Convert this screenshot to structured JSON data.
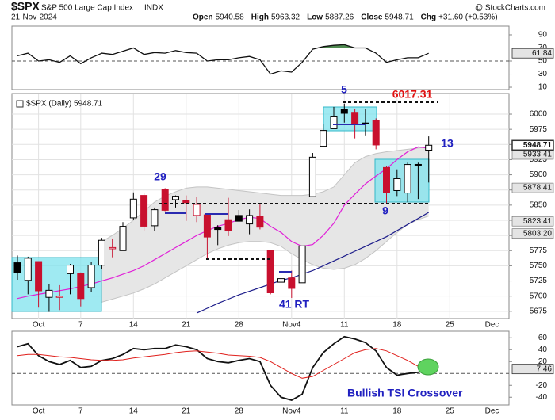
{
  "header": {
    "symbol": "$SPX",
    "name": "S&P 500 Large Cap Index",
    "exchange": "INDX",
    "credit": "@ StockCharts.com",
    "date": "21-Nov-2024",
    "quote": [
      {
        "label": "Open",
        "value": "5940.58"
      },
      {
        "label": "High",
        "value": "5963.32"
      },
      {
        "label": "Low",
        "value": "5887.26"
      },
      {
        "label": "Close",
        "value": "5948.71"
      },
      {
        "label": "Chg",
        "value": "+31.60 (+0.53%)"
      }
    ]
  },
  "chart_data": [
    {
      "type": "line",
      "ylim": [
        6.4,
        103.3
      ],
      "yticks": [
        90,
        70,
        50,
        30,
        10
      ],
      "levels": [
        70,
        30
      ],
      "midline": 50,
      "color": "#111111",
      "over_color": "#4f8a50",
      "under_color": "#b02a40",
      "value_box": true,
      "values": [
        58,
        62,
        50,
        52,
        48,
        58,
        46,
        55,
        62,
        60,
        65,
        70,
        60,
        63,
        62,
        66,
        63,
        62,
        50,
        52,
        52,
        55,
        57,
        52,
        30,
        35,
        33,
        48,
        68,
        72,
        74,
        75,
        70,
        70,
        62,
        48,
        52,
        55,
        55,
        61.84,
        null,
        null,
        null,
        null,
        null,
        null
      ]
    },
    {
      "type": "candlestick",
      "label": "$SPX (Daily) 5948.71",
      "ylim": [
        5663,
        6034
      ],
      "yticks": [
        5675,
        5700,
        5725,
        5750,
        5775,
        5800,
        5825,
        5850,
        5875,
        5900,
        5925,
        5950,
        5975,
        6000
      ],
      "grid": true,
      "up_color": "#000000",
      "down_color": "#c8102e",
      "value_box": true,
      "categories": [
        null,
        null,
        "Oct",
        null,
        null,
        null,
        "7",
        null,
        null,
        null,
        null,
        "14",
        null,
        null,
        null,
        null,
        "21",
        null,
        null,
        null,
        null,
        "28",
        null,
        null,
        null,
        null,
        "Nov4",
        null,
        null,
        null,
        null,
        "11",
        null,
        null,
        null,
        null,
        "18",
        null,
        null,
        null,
        null,
        "25",
        null,
        null,
        null,
        "Dec"
      ],
      "open": [
        5755,
        5726,
        5757,
        5698,
        5698,
        5737,
        5737,
        5714,
        5751,
        5778,
        5775,
        5829,
        5866,
        5816,
        5876,
        5859,
        5857,
        5833,
        5834,
        5813,
        5826,
        5833,
        5819,
        5832,
        5775,
        5723,
        5730,
        5722,
        5864,
        5947,
        5976,
        6008,
        6003,
        5985,
        5989,
        5912,
        5874,
        5870,
        5917,
        5940.58,
        null,
        null,
        null,
        null,
        null,
        null
      ],
      "high": [
        5767,
        5765,
        5757,
        5720,
        5718,
        5753,
        5739,
        5757,
        5796,
        5795,
        5822,
        5871,
        5870,
        5846,
        5878,
        5866,
        5866,
        5863,
        5834,
        5817,
        5862,
        5842,
        5843,
        5851,
        5775,
        5772,
        5742,
        5783,
        5936,
        5983,
        6012,
        6017.31,
        6009,
        6008,
        5993,
        5915,
        5909,
        5920,
        5920,
        5963.32,
        null,
        null,
        null,
        null,
        null,
        null
      ],
      "low": [
        5727,
        5703,
        5681,
        5674,
        5677,
        5703,
        5683,
        5707,
        5745,
        5764,
        5775,
        5825,
        5807,
        5808,
        5840,
        5846,
        5824,
        5822,
        5762,
        5784,
        5799,
        5823,
        5802,
        5810,
        5703,
        5723,
        5697,
        5722,
        5864,
        5947,
        5976,
        5986,
        5960,
        5965,
        5942,
        5853,
        5865,
        5855,
        5860,
        5887.26,
        null,
        null,
        null,
        null,
        null,
        null
      ],
      "close": [
        5738.17,
        5762.48,
        5708.75,
        5709.54,
        5699.94,
        5751.07,
        5695.94,
        5751.13,
        5792.04,
        5780.05,
        5815.03,
        5859.85,
        5815.26,
        5842.47,
        5841.47,
        5864.67,
        5853.98,
        5851.2,
        5797.42,
        5809.86,
        5808.12,
        5823.52,
        5832.92,
        5813.67,
        5705.45,
        5728.8,
        5712.69,
        5782.76,
        5929.04,
        5973.1,
        5995.54,
        6001.35,
        5983.99,
        5985.38,
        5949.17,
        5870.62,
        5893.62,
        5916.98,
        5917.11,
        5948.71,
        null,
        null,
        null,
        null,
        null,
        null
      ],
      "band": {
        "color": "#e6e6e6",
        "edge_color": "#c4c4c4",
        "upper": [
          null,
          null,
          null,
          null,
          null,
          null,
          null,
          null,
          5790,
          5800,
          5812,
          5825,
          5840,
          5855,
          5865,
          5872,
          5878,
          5880,
          5880,
          5878,
          5876,
          5874,
          5872,
          5870,
          5868,
          5866,
          5866,
          5866,
          5868,
          5872,
          5880,
          5900,
          5920,
          5930,
          5935,
          5938,
          5940,
          5942,
          5944,
          5946,
          null,
          null,
          null,
          null,
          null,
          null
        ],
        "lower": [
          null,
          null,
          null,
          null,
          null,
          null,
          null,
          null,
          5690,
          5695,
          5700,
          5705,
          5712,
          5720,
          5730,
          5740,
          5750,
          5760,
          5770,
          5778,
          5784,
          5788,
          5790,
          5790,
          5788,
          5782,
          5770,
          5760,
          5752,
          5746,
          5744,
          5746,
          5752,
          5762,
          5775,
          5790,
          5805,
          5818,
          5826,
          5832,
          null,
          null,
          null,
          null,
          null,
          null
        ]
      },
      "series": [
        {
          "color": "#e020d8",
          "values": [
            5696,
            5700,
            5703,
            5706,
            5709,
            5712,
            5716,
            5720,
            5725,
            5730,
            5736,
            5742,
            5750,
            5760,
            5770,
            5780,
            5790,
            5800,
            5808,
            5815,
            5820,
            5826,
            5830,
            5828,
            5815,
            5805,
            5790,
            5782,
            5785,
            5800,
            5820,
            5850,
            5868,
            5885,
            5898,
            5910,
            5925,
            5938,
            5946,
            5944,
            null,
            null,
            null,
            null,
            null,
            null
          ]
        },
        {
          "color": "#1c1c8a",
          "values": [
            null,
            null,
            null,
            null,
            null,
            null,
            null,
            null,
            null,
            null,
            null,
            null,
            null,
            null,
            null,
            null,
            null,
            5672,
            5680,
            5688,
            5695,
            5702,
            5708,
            5714,
            5720,
            5726,
            5730,
            5736,
            5742,
            5750,
            5758,
            5766,
            5774,
            5782,
            5790,
            5798,
            5808,
            5818,
            5828,
            5838,
            null,
            null,
            null,
            null,
            null,
            null
          ]
        }
      ],
      "price_labels": [
        5933.41,
        5878.41,
        5823.41,
        {
          "value": 5803.2,
          "label": "5803.20"
        }
      ],
      "annotations": [
        "5",
        "6017.31",
        "29",
        "13",
        "9",
        "41 RT"
      ]
    },
    {
      "type": "line",
      "ylim": [
        -53,
        71
      ],
      "yticks": [
        60,
        40,
        20,
        -20,
        -40
      ],
      "midline": 0,
      "value_box": true,
      "categories": [
        null,
        null,
        "Oct",
        null,
        null,
        null,
        "7",
        null,
        null,
        null,
        null,
        "14",
        null,
        null,
        null,
        null,
        "21",
        null,
        null,
        null,
        null,
        "28",
        null,
        null,
        null,
        null,
        "Nov4",
        null,
        null,
        null,
        null,
        "11",
        null,
        null,
        null,
        null,
        "18",
        null,
        null,
        null,
        null,
        "25",
        null,
        null,
        null,
        "Dec"
      ],
      "series": [
        {
          "color": "#111111",
          "values": [
            45,
            50,
            30,
            20,
            15,
            22,
            10,
            12,
            22,
            25,
            32,
            42,
            40,
            42,
            42,
            48,
            45,
            40,
            25,
            20,
            18,
            22,
            25,
            20,
            -20,
            -40,
            -45,
            -35,
            10,
            35,
            50,
            62,
            58,
            52,
            38,
            10,
            -3,
            0,
            2,
            7.46,
            null,
            null,
            null,
            null,
            null,
            null
          ]
        },
        {
          "color": "#e0201c",
          "values": [
            30,
            32,
            32,
            30,
            28,
            27,
            25,
            23,
            22,
            22,
            23,
            26,
            28,
            30,
            32,
            35,
            37,
            38,
            36,
            34,
            31,
            30,
            29,
            27,
            20,
            10,
            0,
            -8,
            -5,
            5,
            15,
            25,
            35,
            40,
            42,
            38,
            30,
            22,
            12,
            5,
            null,
            null,
            null,
            null,
            null,
            null
          ]
        }
      ],
      "annotation": "Bullish TSI Crossover"
    }
  ]
}
